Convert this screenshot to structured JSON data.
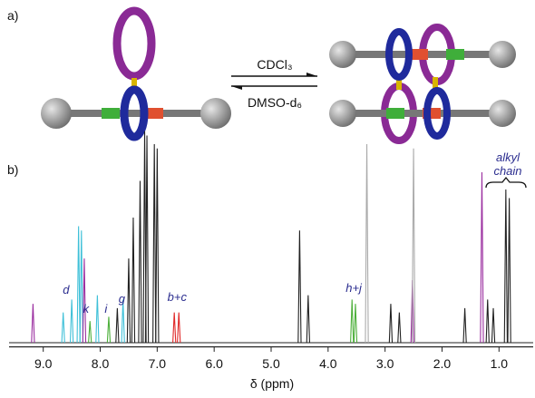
{
  "panel_a": {
    "label": "a)",
    "forward_solvent": "CDCl₃",
    "reverse_solvent": "DMSO-d₆"
  },
  "chart_data": {
    "type": "spectrum",
    "label": "b)",
    "x_label": "δ (ppm)",
    "xlim": [
      9.6,
      0.4
    ],
    "xticks": [
      {
        "value": 9,
        "label": "9.0"
      },
      {
        "value": 8,
        "label": "8.0"
      },
      {
        "value": 7,
        "label": "7.0"
      },
      {
        "value": 6,
        "label": "6.0"
      },
      {
        "value": 5,
        "label": "5.0"
      },
      {
        "value": 4,
        "label": "4.0"
      },
      {
        "value": 3,
        "label": "3.0"
      },
      {
        "value": 2,
        "label": "2.0"
      },
      {
        "value": 1,
        "label": "1.0"
      }
    ],
    "ylim": [
      0,
      100
    ],
    "series": [
      {
        "color": "#222222",
        "x": [
          7.7,
          7.5,
          7.42,
          7.3,
          7.22,
          7.18,
          7.05,
          7.0,
          4.5,
          4.35,
          2.9,
          2.75,
          1.6,
          1.2,
          1.1,
          0.88,
          0.82
        ],
        "values": [
          16,
          39,
          58,
          75,
          98,
          96,
          92,
          90,
          52,
          22,
          18,
          14,
          16,
          20,
          16,
          71,
          67
        ]
      },
      {
        "color": "#3fc0d8",
        "x": [
          8.65,
          8.5,
          8.38,
          8.33,
          8.05,
          7.6
        ],
        "values": [
          14,
          20,
          54,
          52,
          22,
          20
        ]
      },
      {
        "color": "#9b2fa0",
        "x": [
          9.18,
          8.28,
          2.52,
          1.3
        ],
        "values": [
          18,
          39,
          29,
          79
        ]
      },
      {
        "color": "#4caf3a",
        "x": [
          8.18,
          7.85,
          3.58,
          3.52
        ],
        "values": [
          10,
          12,
          20,
          18
        ]
      },
      {
        "color": "#e02828",
        "x": [
          6.7,
          6.62
        ],
        "values": [
          14,
          14
        ]
      },
      {
        "color": "#aaaaaa",
        "x": [
          3.32,
          2.5
        ],
        "values": [
          92,
          90
        ]
      }
    ],
    "annotations": [
      {
        "text": "d",
        "x": 8.6
      },
      {
        "text": "k",
        "x": 8.25
      },
      {
        "text": "i",
        "x": 7.9
      },
      {
        "text": "g",
        "x": 7.62
      },
      {
        "text": "b+c",
        "x": 6.65
      },
      {
        "text": "h+j",
        "x": 3.55
      }
    ],
    "brace_label": [
      "alkyl",
      "chain"
    ]
  }
}
